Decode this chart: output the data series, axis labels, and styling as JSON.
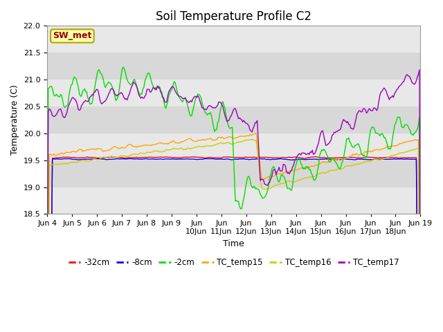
{
  "title": "Soil Temperature Profile C2",
  "xlabel": "Time",
  "ylabel": "Temperature (C)",
  "ylim": [
    18.5,
    22.0
  ],
  "colors": {
    "-32cm": "#ff0000",
    "-8cm": "#0000ff",
    "-2cm": "#00dd00",
    "TC_temp15": "#ffa500",
    "TC_temp16": "#cccc00",
    "TC_temp17": "#9900bb"
  },
  "sw_met_box_color": "#ffffaa",
  "sw_met_text_color": "#990000",
  "sw_met_border_color": "#aaaa00",
  "title_fontsize": 12,
  "label_fontsize": 9,
  "tick_fontsize": 8
}
